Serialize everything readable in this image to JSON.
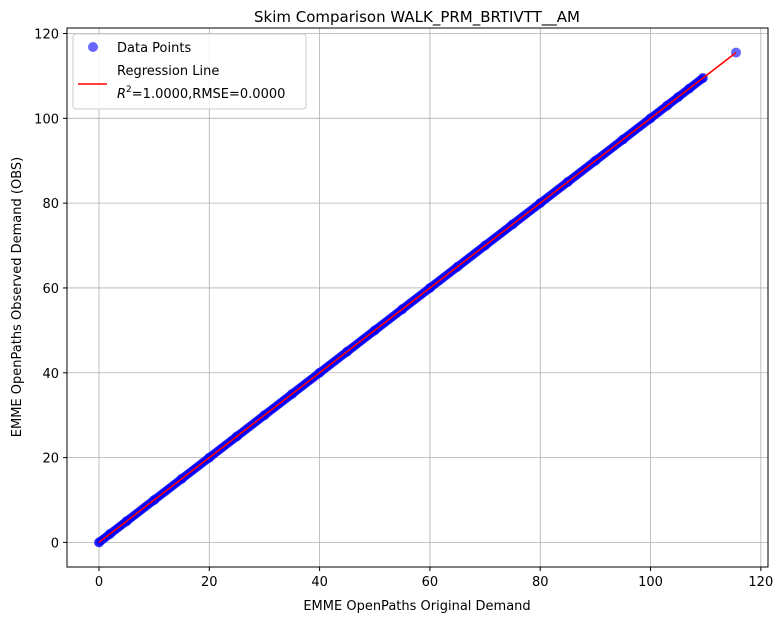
{
  "chart_data": {
    "type": "scatter",
    "title": "Skim Comparison WALK_PRM_BRTIVTT__AM",
    "xlabel": "EMME OpenPaths Original Demand",
    "ylabel": "EMME OpenPaths Observed Demand (OBS)",
    "xlim": [
      -5.8,
      121.3
    ],
    "ylim": [
      -5.8,
      121.3
    ],
    "xticks": [
      0,
      20,
      40,
      60,
      80,
      100,
      120
    ],
    "yticks": [
      0,
      20,
      40,
      60,
      80,
      100,
      120
    ],
    "grid": true,
    "legend_position": "top-left",
    "series": [
      {
        "name": "Data Points",
        "kind": "scatter",
        "color": "#0000ff",
        "x_range": [
          0,
          115.5
        ],
        "points": [
          [
            0,
            0
          ],
          [
            2,
            2
          ],
          [
            5,
            5
          ],
          [
            10,
            10
          ],
          [
            15,
            15
          ],
          [
            20,
            20
          ],
          [
            25,
            25
          ],
          [
            30,
            30
          ],
          [
            35,
            35
          ],
          [
            40,
            40
          ],
          [
            45,
            45
          ],
          [
            50,
            50
          ],
          [
            55,
            55
          ],
          [
            60,
            60
          ],
          [
            65,
            65
          ],
          [
            70,
            70
          ],
          [
            75,
            75
          ],
          [
            80,
            80
          ],
          [
            85,
            85
          ],
          [
            90,
            90
          ],
          [
            95,
            95
          ],
          [
            100,
            100
          ],
          [
            103,
            103
          ],
          [
            105,
            105
          ],
          [
            107,
            107
          ],
          [
            109.5,
            109.5
          ],
          [
            115.5,
            115.5
          ]
        ]
      },
      {
        "name": "Regression Line",
        "kind": "line",
        "color": "#ff0000",
        "x": [
          0,
          115.5
        ],
        "y": [
          0,
          115.5
        ]
      }
    ],
    "legend": {
      "scatter_label": "Data Points",
      "line_label": "Regression Line",
      "stats_prefix": "R",
      "stats_sup": "2",
      "stats_suffix": "=1.0000,RMSE=0.0000"
    }
  }
}
